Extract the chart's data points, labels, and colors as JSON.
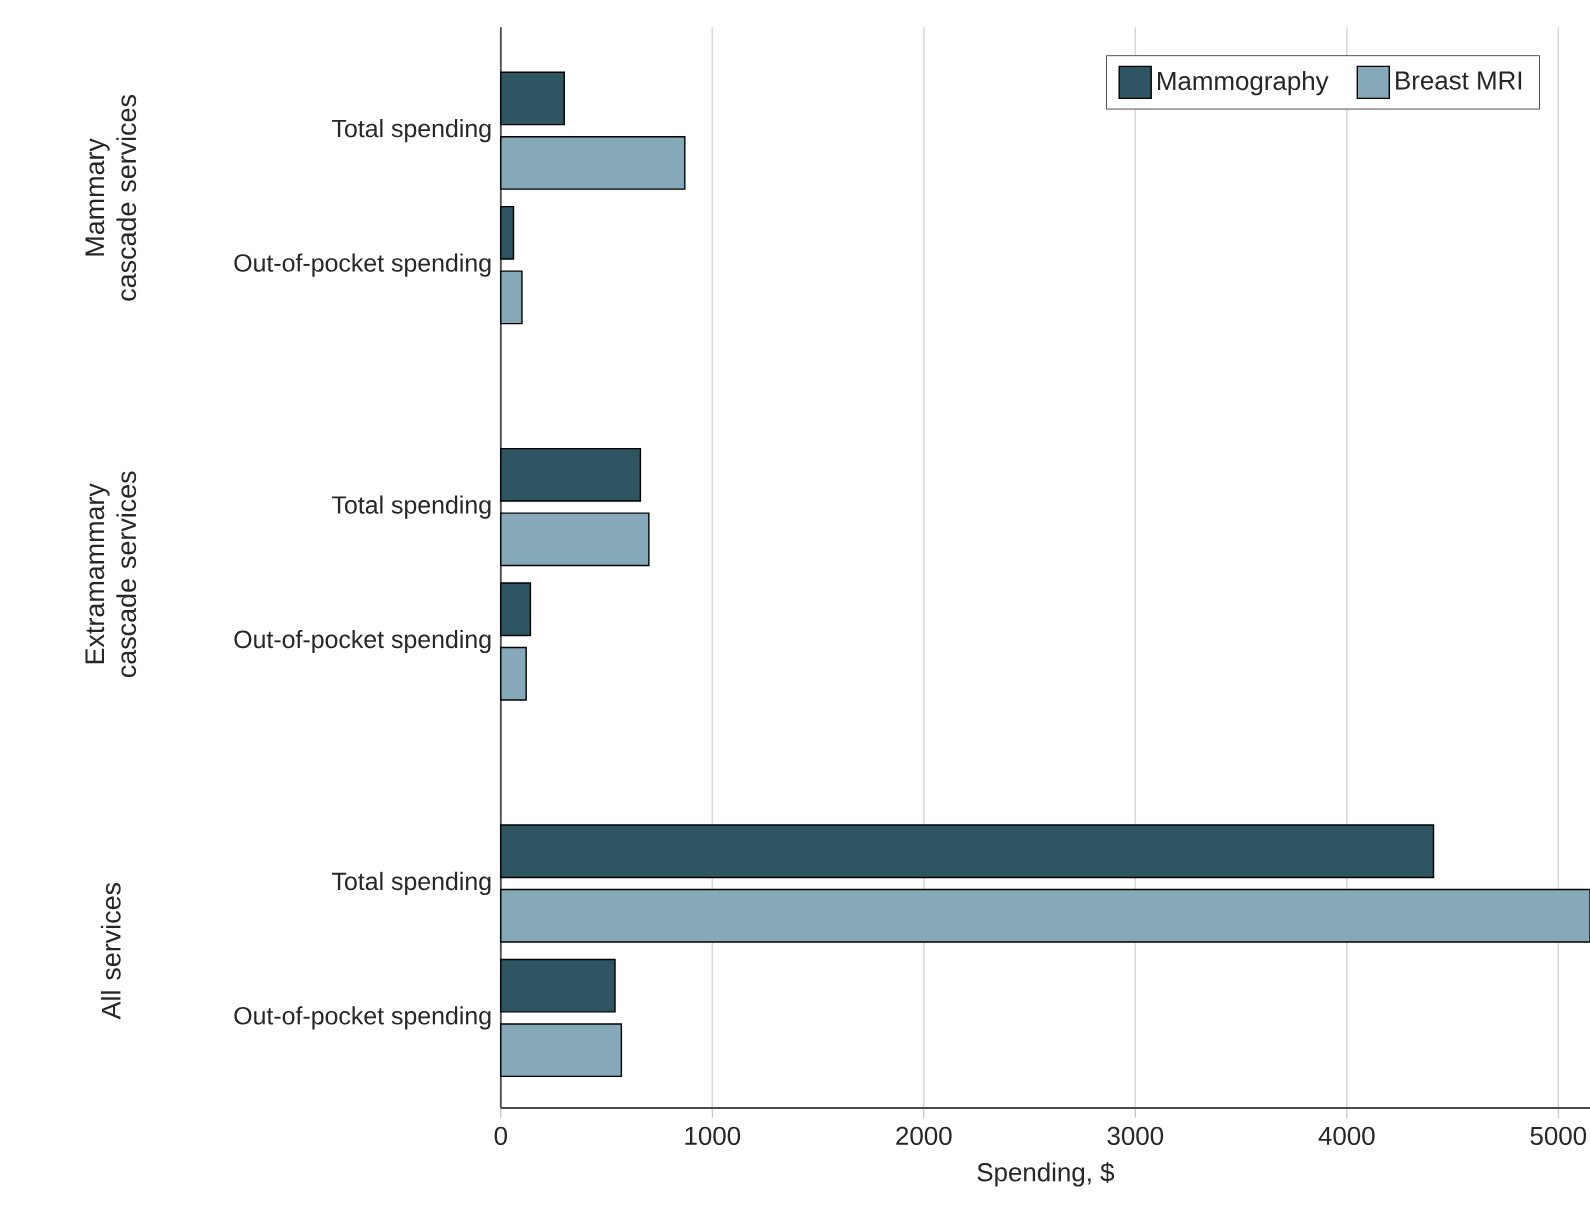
{
  "chart_data": {
    "type": "bar",
    "orientation": "horizontal",
    "xlabel": "Spending, $",
    "categories": [
      "Total spending",
      "Out-of-pocket spending",
      "Total spending",
      "Out-of-pocket spending",
      "Total spending",
      "Out-of-pocket spending"
    ],
    "series": [
      {
        "name": "Mammography",
        "color": "#2d5562",
        "values": [
          300,
          60,
          660,
          140,
          4410,
          540
        ]
      },
      {
        "name": "Breast MRI",
        "color": "#85a9b8",
        "values": [
          870,
          100,
          700,
          120,
          5150,
          570
        ]
      }
    ],
    "xlim": [
      0,
      5150
    ],
    "xticks": [
      0,
      1000,
      2000,
      3000,
      4000,
      5000
    ],
    "grid": "x",
    "legend": "top right",
    "annotations": [
      "Mammary cascade services",
      "Extramammary cascade services",
      "All services"
    ]
  }
}
